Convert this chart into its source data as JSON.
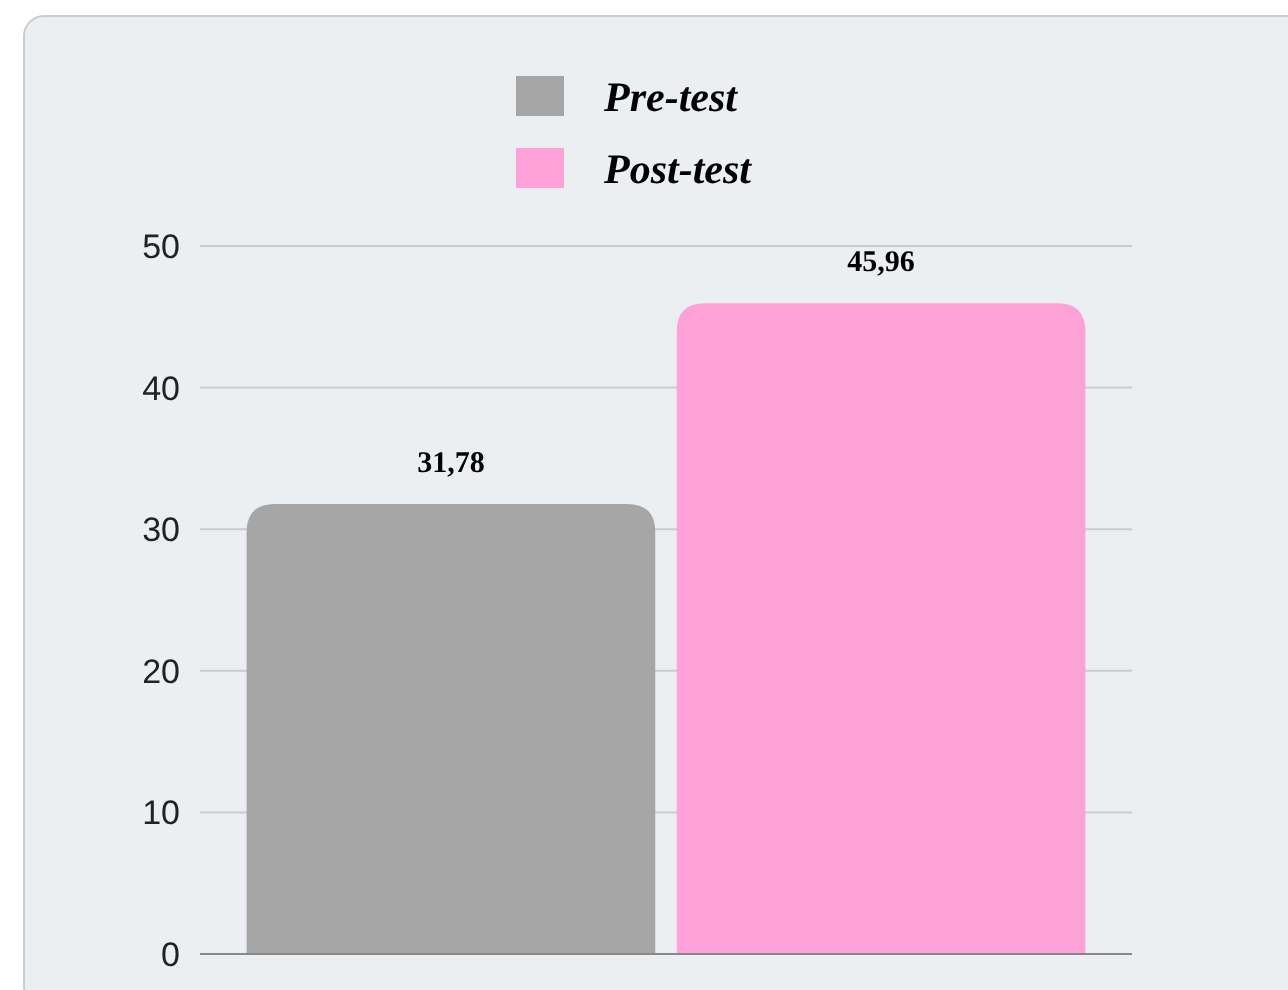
{
  "chart_data": {
    "type": "bar",
    "categories": [
      null
    ],
    "series": [
      {
        "name": "Pre-test",
        "color": "#a6a6a6",
        "values": [
          31.78
        ],
        "value_labels": [
          "31,78"
        ]
      },
      {
        "name": "Post-test",
        "color": "#ffa1d9",
        "values": [
          45.96
        ],
        "value_labels": [
          "45,96"
        ]
      }
    ],
    "ylim": [
      0,
      50
    ],
    "yticks": [
      0,
      10,
      20,
      30,
      40,
      50
    ],
    "grid": "y",
    "legend": "top"
  }
}
